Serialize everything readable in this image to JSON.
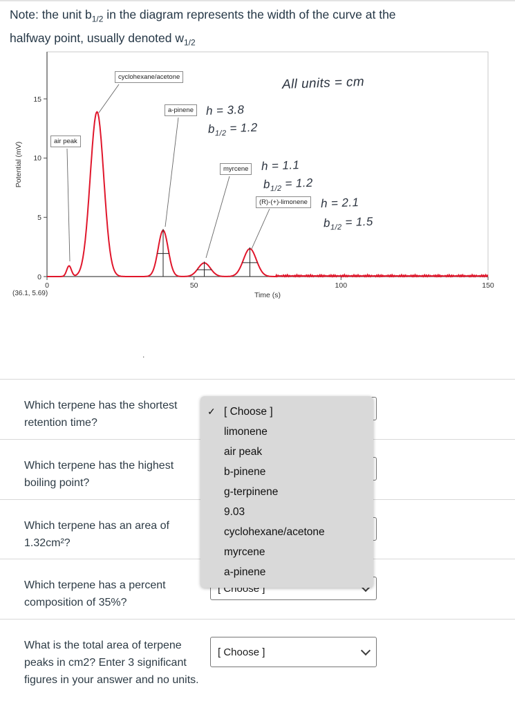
{
  "note": {
    "part1": "Note: the unit b",
    "sub1": "1/2",
    "part2": " in the diagram represents the width of the curve at the",
    "part3": "halfway point, usually denoted w",
    "sub2": "1/2"
  },
  "chart_data": {
    "type": "line",
    "title": "",
    "xlabel": "Time (s)",
    "ylabel": "Potential (mV)",
    "xlim": [
      0,
      150
    ],
    "ylim": [
      0,
      19
    ],
    "xtick_labels": [
      "0",
      "50",
      "100",
      "150"
    ],
    "ytick_labels": [
      "0",
      "5",
      "10",
      "15"
    ],
    "origin_readout": "(36.1, 5.69)",
    "curve_color": "#e0162b",
    "grid": false,
    "peaks": [
      {
        "name": "air peak",
        "t": 7.5,
        "h": 0.9,
        "sigma": 0.8,
        "measured": false
      },
      {
        "name": "cyclohexane/acetone",
        "t": 17.0,
        "h": 13.9,
        "sigma": 2.3,
        "measured": false
      },
      {
        "name": "a-pinene",
        "t": 39.5,
        "h": 3.9,
        "sigma": 1.7,
        "measured": true
      },
      {
        "name": "myrcene",
        "t": 53.5,
        "h": 1.15,
        "sigma": 2.1,
        "measured": true
      },
      {
        "name": "(R)-(+)-limonene",
        "t": 69.0,
        "h": 2.35,
        "sigma": 2.2,
        "measured": true
      }
    ],
    "peak_labels": {
      "cyclohexane": "cyclohexane/acetone",
      "air": "air peak",
      "apinene": "a-pinene",
      "myrcene": "myrcene",
      "limonene": "(R)-(+)-limonene"
    },
    "annotations": {
      "units_note": "All units = cm",
      "apinene": {
        "h": "h = 3.8",
        "b_base": "b",
        "b_sub": "1/2",
        "b_val": " = 1.2"
      },
      "myrcene": {
        "h": "h = 1.1",
        "b_base": "b",
        "b_sub": "1/2",
        "b_val": " = 1.2"
      },
      "limonene": {
        "h": "h = 2.1",
        "b_base": "b",
        "b_sub": "1/2",
        "b_val": " = 1.5"
      }
    }
  },
  "stray_dot": ".",
  "questions": [
    {
      "text": "Which terpene has the shortest retention time?",
      "select_value": "[ Choose ]"
    },
    {
      "text": "Which terpene has the highest boiling point?",
      "select_value": "[ Choose ]"
    },
    {
      "text": "Which terpene has an area of 1.32cm²?",
      "select_value": "[ Choose ]"
    },
    {
      "text": "Which terpene has a percent composition of 35%?",
      "select_value": "[ Choose ]"
    },
    {
      "text": "What is the total area of terpene peaks in cm2? Enter 3 significant figures in your answer and no units.",
      "select_value": "[ Choose ]"
    }
  ],
  "dropdown_menu": {
    "check_glyph": "✓",
    "options": [
      "[ Choose ]",
      "limonene",
      "air peak",
      "b-pinene",
      "g-terpinene",
      "9.03",
      "cyclohexane/acetone",
      "myrcene",
      "a-pinene"
    ]
  }
}
